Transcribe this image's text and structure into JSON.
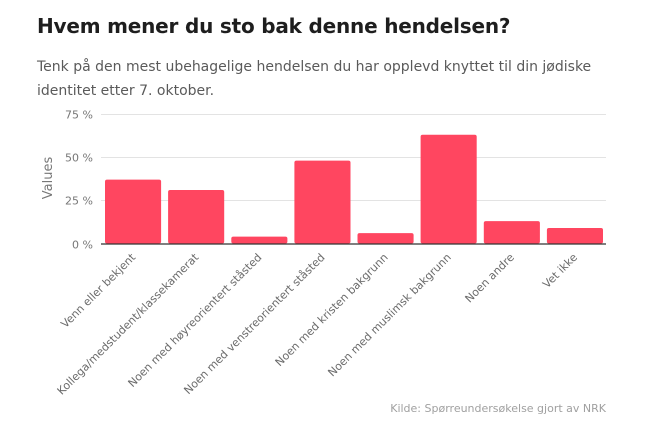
{
  "header": {
    "title": "Hvem mener du sto bak denne hendelsen?",
    "subtitle": "Tenk på den mest ubehagelige hendelsen du har opplevd knyttet til din jødiske identitet etter 7. oktober."
  },
  "footer": {
    "source": "Kilde: Spørreundersøkelse gjort av NRK"
  },
  "colors": {
    "bar": "#ff4660",
    "grid": "#e3e3e3",
    "axis": "#333333",
    "tick_text": "#777777",
    "label_text": "#6a6a6a"
  },
  "chart_data": {
    "type": "bar",
    "title": "Hvem mener du sto bak denne hendelsen?",
    "xlabel": "",
    "ylabel": "Values",
    "ylim": [
      0,
      75
    ],
    "yticks": [
      0,
      25,
      50,
      75
    ],
    "ytick_labels": [
      "0 %",
      "25 %",
      "50 %",
      "75 %"
    ],
    "grid": true,
    "legend": "none",
    "categories": [
      "Venn eller bekjent",
      "Kollega/medstudent/klassekamerat",
      "Noen med høyreorientert ståsted",
      "Noen med venstreorientert ståsted",
      "Noen med kristen bakgrunn",
      "Noen med muslimsk bakgrunn",
      "Noen andre",
      "Vet ikke"
    ],
    "values": [
      37,
      31,
      4,
      48,
      6,
      63,
      13,
      9
    ],
    "unit": "%"
  }
}
